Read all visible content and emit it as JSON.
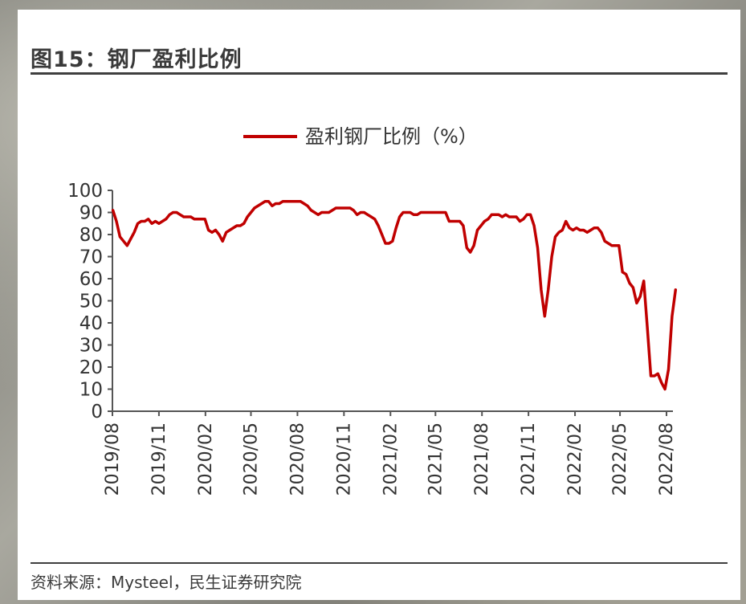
{
  "title": "图15：钢厂盈利比例",
  "source": "资料来源：Mysteel，民生证券研究院",
  "chart_data": {
    "type": "line",
    "title": "图15：钢厂盈利比例",
    "xlabel": "",
    "ylabel": "",
    "ylim": [
      0,
      100
    ],
    "yticks": [
      0,
      10,
      20,
      30,
      40,
      50,
      60,
      70,
      80,
      90,
      100
    ],
    "xlim": [
      "2019/08",
      "2022/08"
    ],
    "xticks": [
      "2019/08",
      "2019/11",
      "2020/02",
      "2020/05",
      "2020/08",
      "2020/11",
      "2021/02",
      "2021/05",
      "2021/08",
      "2021/11",
      "2022/02",
      "2022/05",
      "2022/08"
    ],
    "legend": "top-center",
    "grid": false,
    "series": [
      {
        "name": "盈利钢厂比例（%）",
        "color": "#c00000",
        "points": [
          [
            "2019-08-02",
            91
          ],
          [
            "2019-08-09",
            86
          ],
          [
            "2019-08-16",
            79
          ],
          [
            "2019-08-23",
            77
          ],
          [
            "2019-08-30",
            75
          ],
          [
            "2019-09-06",
            78
          ],
          [
            "2019-09-13",
            81
          ],
          [
            "2019-09-20",
            85
          ],
          [
            "2019-09-27",
            86
          ],
          [
            "2019-10-04",
            86
          ],
          [
            "2019-10-11",
            87
          ],
          [
            "2019-10-18",
            85
          ],
          [
            "2019-10-25",
            86
          ],
          [
            "2019-11-01",
            85
          ],
          [
            "2019-11-08",
            86
          ],
          [
            "2019-11-15",
            87
          ],
          [
            "2019-11-22",
            89
          ],
          [
            "2019-11-29",
            90
          ],
          [
            "2019-12-06",
            90
          ],
          [
            "2019-12-13",
            89
          ],
          [
            "2019-12-20",
            88
          ],
          [
            "2019-12-27",
            88
          ],
          [
            "2020-01-03",
            88
          ],
          [
            "2020-01-10",
            87
          ],
          [
            "2020-01-17",
            87
          ],
          [
            "2020-01-31",
            87
          ],
          [
            "2020-02-07",
            82
          ],
          [
            "2020-02-14",
            81
          ],
          [
            "2020-02-21",
            82
          ],
          [
            "2020-02-28",
            80
          ],
          [
            "2020-03-06",
            77
          ],
          [
            "2020-03-13",
            81
          ],
          [
            "2020-03-20",
            82
          ],
          [
            "2020-03-27",
            83
          ],
          [
            "2020-04-03",
            84
          ],
          [
            "2020-04-10",
            84
          ],
          [
            "2020-04-17",
            85
          ],
          [
            "2020-04-24",
            88
          ],
          [
            "2020-05-01",
            90
          ],
          [
            "2020-05-08",
            92
          ],
          [
            "2020-05-15",
            93
          ],
          [
            "2020-05-22",
            94
          ],
          [
            "2020-05-29",
            95
          ],
          [
            "2020-06-05",
            95
          ],
          [
            "2020-06-12",
            93
          ],
          [
            "2020-06-19",
            94
          ],
          [
            "2020-06-26",
            94
          ],
          [
            "2020-07-03",
            95
          ],
          [
            "2020-07-10",
            95
          ],
          [
            "2020-07-17",
            95
          ],
          [
            "2020-07-24",
            95
          ],
          [
            "2020-07-31",
            95
          ],
          [
            "2020-08-07",
            95
          ],
          [
            "2020-08-14",
            94
          ],
          [
            "2020-08-21",
            93
          ],
          [
            "2020-08-28",
            91
          ],
          [
            "2020-09-04",
            90
          ],
          [
            "2020-09-11",
            89
          ],
          [
            "2020-09-18",
            90
          ],
          [
            "2020-09-25",
            90
          ],
          [
            "2020-10-02",
            90
          ],
          [
            "2020-10-09",
            91
          ],
          [
            "2020-10-16",
            92
          ],
          [
            "2020-10-23",
            92
          ],
          [
            "2020-10-30",
            92
          ],
          [
            "2020-11-06",
            92
          ],
          [
            "2020-11-13",
            92
          ],
          [
            "2020-11-20",
            91
          ],
          [
            "2020-11-27",
            89
          ],
          [
            "2020-12-04",
            90
          ],
          [
            "2020-12-11",
            90
          ],
          [
            "2020-12-18",
            89
          ],
          [
            "2020-12-25",
            88
          ],
          [
            "2021-01-01",
            87
          ],
          [
            "2021-01-08",
            84
          ],
          [
            "2021-01-15",
            80
          ],
          [
            "2021-01-22",
            76
          ],
          [
            "2021-01-29",
            76
          ],
          [
            "2021-02-05",
            77
          ],
          [
            "2021-02-12",
            83
          ],
          [
            "2021-02-19",
            88
          ],
          [
            "2021-02-26",
            90
          ],
          [
            "2021-03-05",
            90
          ],
          [
            "2021-03-12",
            90
          ],
          [
            "2021-03-19",
            89
          ],
          [
            "2021-03-26",
            89
          ],
          [
            "2021-04-02",
            90
          ],
          [
            "2021-04-09",
            90
          ],
          [
            "2021-04-16",
            90
          ],
          [
            "2021-04-23",
            90
          ],
          [
            "2021-04-30",
            90
          ],
          [
            "2021-05-07",
            90
          ],
          [
            "2021-05-14",
            90
          ],
          [
            "2021-05-21",
            90
          ],
          [
            "2021-05-28",
            86
          ],
          [
            "2021-06-04",
            86
          ],
          [
            "2021-06-11",
            86
          ],
          [
            "2021-06-18",
            86
          ],
          [
            "2021-06-25",
            84
          ],
          [
            "2021-07-02",
            74
          ],
          [
            "2021-07-09",
            72
          ],
          [
            "2021-07-16",
            75
          ],
          [
            "2021-07-23",
            82
          ],
          [
            "2021-07-30",
            84
          ],
          [
            "2021-08-06",
            86
          ],
          [
            "2021-08-13",
            87
          ],
          [
            "2021-08-20",
            89
          ],
          [
            "2021-08-27",
            89
          ],
          [
            "2021-09-03",
            89
          ],
          [
            "2021-09-10",
            88
          ],
          [
            "2021-09-17",
            89
          ],
          [
            "2021-09-24",
            88
          ],
          [
            "2021-10-01",
            88
          ],
          [
            "2021-10-08",
            88
          ],
          [
            "2021-10-15",
            86
          ],
          [
            "2021-10-22",
            87
          ],
          [
            "2021-10-29",
            89
          ],
          [
            "2021-11-05",
            89
          ],
          [
            "2021-11-12",
            84
          ],
          [
            "2021-11-19",
            74
          ],
          [
            "2021-11-26",
            55
          ],
          [
            "2021-12-03",
            43
          ],
          [
            "2021-12-10",
            55
          ],
          [
            "2021-12-17",
            70
          ],
          [
            "2021-12-24",
            79
          ],
          [
            "2021-12-31",
            81
          ],
          [
            "2022-01-07",
            82
          ],
          [
            "2022-01-14",
            86
          ],
          [
            "2022-01-21",
            83
          ],
          [
            "2022-01-28",
            82
          ],
          [
            "2022-02-04",
            83
          ],
          [
            "2022-02-11",
            82
          ],
          [
            "2022-02-18",
            82
          ],
          [
            "2022-02-25",
            81
          ],
          [
            "2022-03-04",
            82
          ],
          [
            "2022-03-11",
            83
          ],
          [
            "2022-03-18",
            83
          ],
          [
            "2022-03-25",
            81
          ],
          [
            "2022-04-01",
            77
          ],
          [
            "2022-04-08",
            76
          ],
          [
            "2022-04-15",
            75
          ],
          [
            "2022-04-22",
            75
          ],
          [
            "2022-04-29",
            75
          ],
          [
            "2022-05-06",
            63
          ],
          [
            "2022-05-13",
            62
          ],
          [
            "2022-05-20",
            58
          ],
          [
            "2022-05-27",
            56
          ],
          [
            "2022-06-03",
            49
          ],
          [
            "2022-06-10",
            52
          ],
          [
            "2022-06-17",
            59
          ],
          [
            "2022-06-24",
            38
          ],
          [
            "2022-07-01",
            16
          ],
          [
            "2022-07-08",
            16
          ],
          [
            "2022-07-15",
            17
          ],
          [
            "2022-07-22",
            13
          ],
          [
            "2022-07-29",
            10
          ],
          [
            "2022-08-05",
            19
          ],
          [
            "2022-08-12",
            43
          ],
          [
            "2022-08-19",
            55
          ]
        ]
      }
    ]
  }
}
